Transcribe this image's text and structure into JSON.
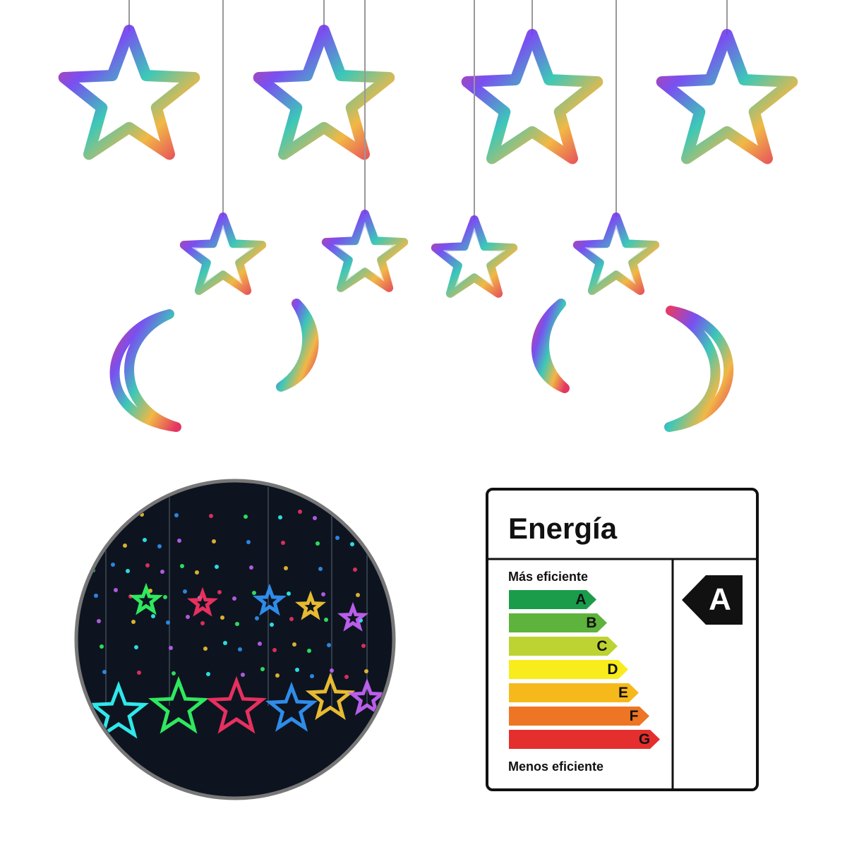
{
  "label": {
    "title": "Energía",
    "top_text": "Más eficiente",
    "bottom_text": "Menos eficiente",
    "classes": [
      {
        "letter": "A",
        "color": "#1a9c4a"
      },
      {
        "letter": "B",
        "color": "#5db33b"
      },
      {
        "letter": "C",
        "color": "#bdd332"
      },
      {
        "letter": "D",
        "color": "#f8ec1c"
      },
      {
        "letter": "E",
        "color": "#f6b91b"
      },
      {
        "letter": "F",
        "color": "#ed7523"
      },
      {
        "letter": "G",
        "color": "#e52e2e"
      }
    ],
    "rating": "A"
  }
}
